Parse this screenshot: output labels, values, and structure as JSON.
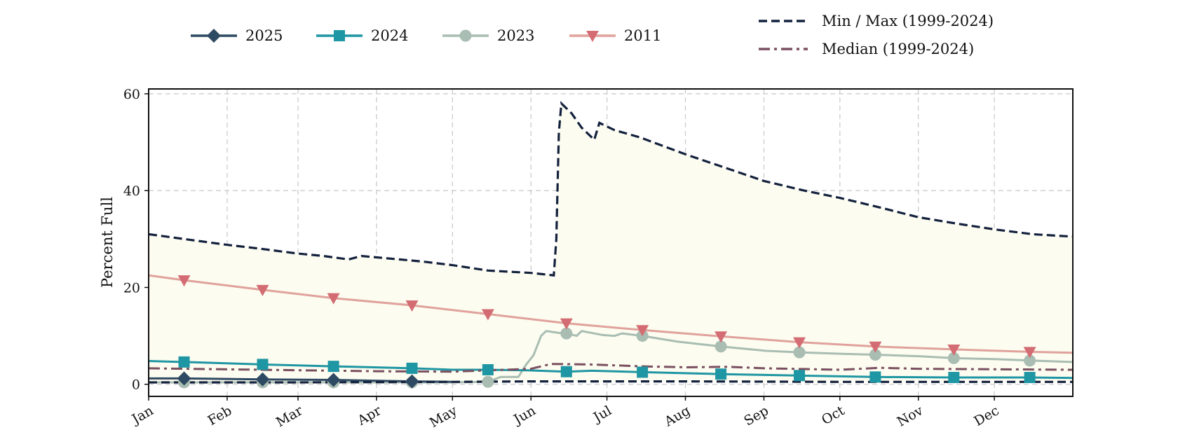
{
  "chart_data": {
    "type": "line",
    "title": "",
    "xlabel": "",
    "ylabel": "Percent Full",
    "ylim": [
      -2.5,
      61
    ],
    "yticks": [
      0,
      20,
      40,
      60
    ],
    "x_range_days": [
      1,
      366
    ],
    "months": [
      "Jan",
      "Feb",
      "Mar",
      "Apr",
      "May",
      "Jun",
      "Jul",
      "Aug",
      "Sep",
      "Oct",
      "Nov",
      "Dec"
    ],
    "month_start_days": [
      1,
      32,
      60,
      91,
      121,
      152,
      182,
      213,
      244,
      274,
      305,
      335
    ],
    "grid": true,
    "legend_position": "top",
    "band": {
      "label": "Min / Max (1999-2024)",
      "fill": "#fcfcf0",
      "color": "#14213d",
      "max": [
        [
          1,
          31
        ],
        [
          15,
          30
        ],
        [
          32,
          28.8
        ],
        [
          45,
          28
        ],
        [
          60,
          27
        ],
        [
          70,
          26.5
        ],
        [
          80,
          25.8
        ],
        [
          85,
          26.5
        ],
        [
          100,
          25.8
        ],
        [
          110,
          25.3
        ],
        [
          121,
          24.6
        ],
        [
          135,
          23.5
        ],
        [
          152,
          23
        ],
        [
          161,
          22.5
        ],
        [
          162,
          30
        ],
        [
          163,
          52
        ],
        [
          164,
          58
        ],
        [
          168,
          56
        ],
        [
          172,
          53
        ],
        [
          177,
          50.5
        ],
        [
          179,
          54
        ],
        [
          185,
          52.5
        ],
        [
          195,
          51
        ],
        [
          213,
          47.5
        ],
        [
          230,
          44.5
        ],
        [
          244,
          42
        ],
        [
          260,
          40
        ],
        [
          274,
          38.5
        ],
        [
          290,
          36.5
        ],
        [
          305,
          34.5
        ],
        [
          320,
          33.2
        ],
        [
          335,
          32
        ],
        [
          350,
          31
        ],
        [
          366,
          30.5
        ]
      ],
      "min": [
        [
          1,
          0.4
        ],
        [
          60,
          0.4
        ],
        [
          121,
          0.5
        ],
        [
          152,
          0.6
        ],
        [
          213,
          0.6
        ],
        [
          274,
          0.5
        ],
        [
          335,
          0.5
        ],
        [
          366,
          0.5
        ]
      ]
    },
    "series": [
      {
        "name": "2025",
        "color": "#2e4a62",
        "marker": "diamond",
        "values": [
          [
            1,
            1.2
          ],
          [
            15,
            1.2
          ],
          [
            46,
            1.0
          ],
          [
            74,
            0.9
          ],
          [
            105,
            0.6
          ],
          [
            121,
            0.5
          ]
        ],
        "marker_days": [
          15,
          46,
          74,
          105
        ]
      },
      {
        "name": "2024",
        "color": "#1f96a3",
        "marker": "square",
        "values": [
          [
            1,
            4.8
          ],
          [
            15,
            4.6
          ],
          [
            46,
            4.1
          ],
          [
            74,
            3.7
          ],
          [
            105,
            3.3
          ],
          [
            121,
            3.0
          ],
          [
            135,
            3.0
          ],
          [
            150,
            2.9
          ],
          [
            166,
            2.6
          ],
          [
            176,
            2.8
          ],
          [
            196,
            2.5
          ],
          [
            227,
            2.1
          ],
          [
            258,
            1.8
          ],
          [
            288,
            1.5
          ],
          [
            319,
            1.4
          ],
          [
            349,
            1.4
          ],
          [
            366,
            1.3
          ]
        ],
        "marker_days": [
          15,
          46,
          74,
          105,
          135,
          166,
          196,
          227,
          258,
          288,
          319,
          349
        ]
      },
      {
        "name": "2023",
        "color": "#a9bdb2",
        "marker": "circle",
        "values": [
          [
            1,
            0.4
          ],
          [
            120,
            0.4
          ],
          [
            135,
            0.5
          ],
          [
            140,
            1.5
          ],
          [
            147,
            1.5
          ],
          [
            150,
            4
          ],
          [
            153,
            6
          ],
          [
            156,
            10
          ],
          [
            158,
            11
          ],
          [
            163,
            10.6
          ],
          [
            166,
            10.5
          ],
          [
            170,
            10
          ],
          [
            172,
            11
          ],
          [
            180,
            10.2
          ],
          [
            185,
            10
          ],
          [
            188,
            10.5
          ],
          [
            196,
            10
          ],
          [
            210,
            8.8
          ],
          [
            227,
            7.8
          ],
          [
            245,
            6.9
          ],
          [
            258,
            6.6
          ],
          [
            275,
            6.3
          ],
          [
            288,
            6.1
          ],
          [
            305,
            5.8
          ],
          [
            319,
            5.4
          ],
          [
            335,
            5.2
          ],
          [
            349,
            4.9
          ],
          [
            366,
            4.6
          ]
        ],
        "marker_days": [
          15,
          46,
          74,
          105,
          135,
          166,
          196,
          227,
          258,
          288,
          319,
          349
        ]
      },
      {
        "name": "2011",
        "color": "#e0a29b",
        "marker_color": "#d46c73",
        "marker": "triangle-down",
        "values": [
          [
            1,
            22.5
          ],
          [
            15,
            21.5
          ],
          [
            46,
            19.5
          ],
          [
            74,
            17.8
          ],
          [
            105,
            16.3
          ],
          [
            135,
            14.5
          ],
          [
            166,
            12.6
          ],
          [
            196,
            11.2
          ],
          [
            227,
            9.9
          ],
          [
            258,
            8.7
          ],
          [
            288,
            7.8
          ],
          [
            319,
            7.2
          ],
          [
            349,
            6.7
          ],
          [
            366,
            6.5
          ]
        ],
        "marker_days": [
          15,
          46,
          74,
          105,
          135,
          166,
          196,
          227,
          258,
          288,
          319,
          349
        ]
      },
      {
        "name": "Median (1999-2024)",
        "color": "#7a5060",
        "dash": "dashdot",
        "values": [
          [
            1,
            3.3
          ],
          [
            30,
            3.1
          ],
          [
            60,
            2.9
          ],
          [
            91,
            2.7
          ],
          [
            121,
            2.6
          ],
          [
            152,
            3.2
          ],
          [
            160,
            4.2
          ],
          [
            175,
            4.1
          ],
          [
            196,
            3.7
          ],
          [
            213,
            3.5
          ],
          [
            230,
            3.6
          ],
          [
            244,
            3.3
          ],
          [
            274,
            3.0
          ],
          [
            290,
            3.4
          ],
          [
            305,
            3.2
          ],
          [
            335,
            3.1
          ],
          [
            366,
            3.0
          ]
        ]
      }
    ],
    "legend_items": [
      {
        "label": "2025",
        "color": "#2e4a62",
        "marker": "diamond"
      },
      {
        "label": "2024",
        "color": "#1f96a3",
        "marker": "square"
      },
      {
        "label": "2023",
        "color": "#a9bdb2",
        "marker": "circle"
      },
      {
        "label": "2011",
        "color": "#e0a29b",
        "marker": "triangle-down"
      },
      {
        "label": "Min / Max (1999-2024)",
        "color": "#14213d",
        "dash": "dashed"
      },
      {
        "label": "Median (1999-2024)",
        "color": "#7a5060",
        "dash": "dashdot"
      }
    ]
  }
}
